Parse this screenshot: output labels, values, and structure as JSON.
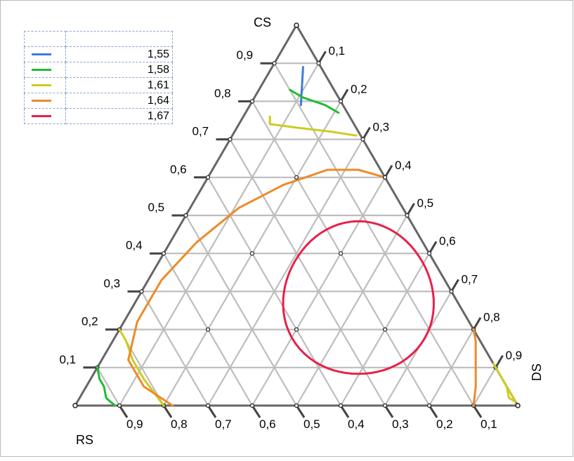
{
  "chart_data": {
    "type": "ternary-contour",
    "axes": {
      "top": "CS",
      "bottom_left": "RS",
      "right": "DS"
    },
    "ticks": [
      "0,1",
      "0,2",
      "0,3",
      "0,4",
      "0,5",
      "0,6",
      "0,7",
      "0,8",
      "0,9"
    ],
    "grid": true,
    "legend": {
      "placement": "top-left",
      "entries": [
        {
          "label": "1,55",
          "color": "#3b7ddd"
        },
        {
          "label": "1,58",
          "color": "#22bb33"
        },
        {
          "label": "1,61",
          "color": "#cccc22"
        },
        {
          "label": "1,64",
          "color": "#ee8a2a"
        },
        {
          "label": "1,67",
          "color": "#e8204a"
        }
      ]
    },
    "contours": [
      {
        "level": "1,55",
        "segments": [
          [
            [
              0.115,
              0.79,
              0.095
            ],
            [
              0.07,
              0.89,
              0.04
            ]
          ]
        ]
      },
      {
        "level": "1,58",
        "segments": [
          [
            [
              0.21,
              0.77,
              0.02
            ],
            [
              0.17,
              0.79,
              0.04
            ],
            [
              0.11,
              0.81,
              0.08
            ],
            [
              0.07,
              0.83,
              0.1
            ]
          ],
          [
            [
              0.0,
              0.1,
              0.9
            ],
            [
              0.02,
              0.07,
              0.91
            ],
            [
              0.04,
              0.05,
              0.91
            ],
            [
              0.06,
              0.02,
              0.92
            ],
            [
              0.09,
              0.0,
              0.91
            ]
          ]
        ]
      },
      {
        "level": "1,61",
        "segments": [
          [
            [
              0.28,
              0.71,
              0.01
            ],
            [
              0.22,
              0.72,
              0.06
            ],
            [
              0.14,
              0.73,
              0.13
            ],
            [
              0.07,
              0.74,
              0.19
            ],
            [
              0.06,
              0.76,
              0.18
            ]
          ],
          [
            [
              0.0,
              0.2,
              0.8
            ],
            [
              0.03,
              0.17,
              0.8
            ],
            [
              0.07,
              0.12,
              0.81
            ],
            [
              0.12,
              0.07,
              0.81
            ],
            [
              0.2,
              0.0,
              0.8
            ]
          ],
          [
            [
              0.95,
              0.05,
              0.0
            ],
            [
              0.97,
              0.02,
              0.01
            ],
            [
              0.99,
              0.01,
              0.0
            ],
            [
              0.91,
              0.09,
              0.0
            ],
            [
              0.89,
              0.11,
              0.0
            ]
          ]
        ]
      },
      {
        "level": "1,64",
        "segments": [
          [
            [
              0.22,
              0.0,
              0.78
            ],
            [
              0.13,
              0.05,
              0.82
            ],
            [
              0.06,
              0.12,
              0.82
            ],
            [
              0.03,
              0.22,
              0.75
            ],
            [
              0.03,
              0.33,
              0.64
            ],
            [
              0.06,
              0.43,
              0.51
            ],
            [
              0.11,
              0.52,
              0.37
            ],
            [
              0.18,
              0.58,
              0.24
            ],
            [
              0.26,
              0.62,
              0.12
            ],
            [
              0.33,
              0.62,
              0.05
            ],
            [
              0.4,
              0.6,
              0.0
            ]
          ],
          [
            [
              0.8,
              0.2,
              0.0
            ],
            [
              0.82,
              0.17,
              0.01
            ],
            [
              0.84,
              0.13,
              0.03
            ],
            [
              0.86,
              0.09,
              0.05
            ],
            [
              0.88,
              0.05,
              0.07
            ],
            [
              0.9,
              0.0,
              0.1
            ]
          ]
        ]
      },
      {
        "level": "1,67",
        "closed": true,
        "center": [
          0.5,
          0.28
        ],
        "rx": 0.17,
        "ry": 0.17
      }
    ]
  }
}
